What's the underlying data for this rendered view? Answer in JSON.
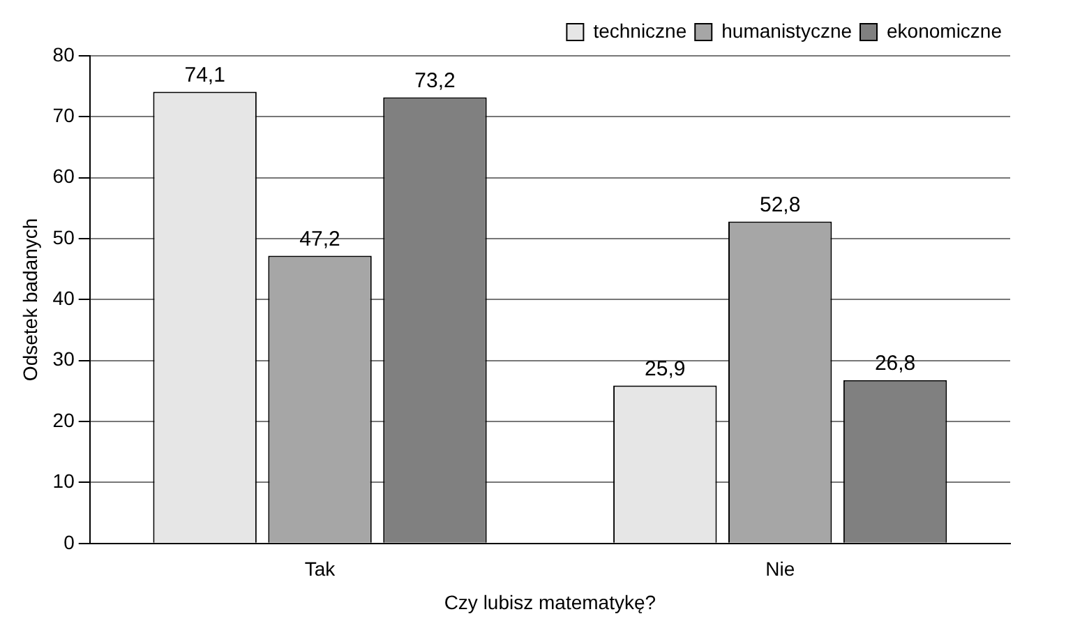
{
  "chart_data": {
    "type": "bar",
    "xlabel": "Czy lubisz matematykę?",
    "ylabel": "Odsetek badanych",
    "categories": [
      "Tak",
      "Nie"
    ],
    "series": [
      {
        "name": "techniczne",
        "color": "#e6e6e6",
        "values": [
          74.1,
          25.9
        ],
        "value_labels": [
          "74,1",
          "25,9"
        ]
      },
      {
        "name": "humanistyczne",
        "color": "#a6a6a6",
        "values": [
          47.2,
          52.8
        ],
        "value_labels": [
          "47,2",
          "52,8"
        ]
      },
      {
        "name": "ekonomiczne",
        "color": "#808080",
        "values": [
          73.2,
          26.8
        ],
        "value_labels": [
          "73,2",
          "26,8"
        ]
      }
    ],
    "ylim": [
      0,
      80
    ],
    "yticks": [
      0,
      10,
      20,
      30,
      40,
      50,
      60,
      70,
      80
    ],
    "grid": "y",
    "legend": "top right"
  }
}
